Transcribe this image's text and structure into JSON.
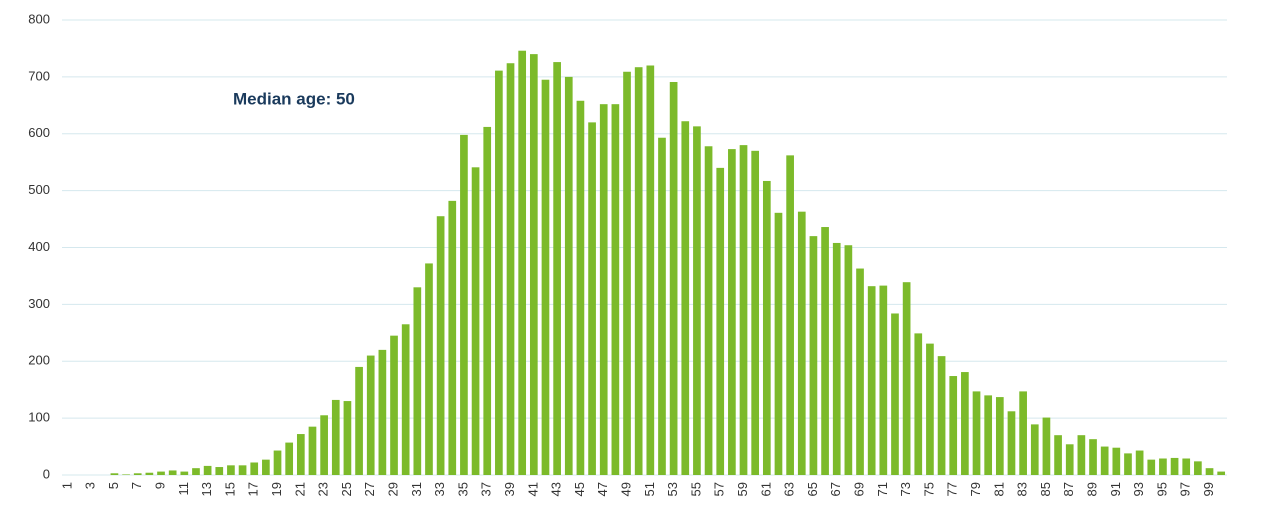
{
  "chart_data": {
    "type": "bar",
    "annotation": "Median age: 50",
    "categories": [
      1,
      null,
      3,
      null,
      5,
      null,
      7,
      null,
      9,
      null,
      11,
      null,
      13,
      null,
      15,
      null,
      17,
      null,
      19,
      null,
      21,
      null,
      23,
      null,
      25,
      null,
      27,
      null,
      29,
      null,
      31,
      null,
      33,
      null,
      35,
      null,
      37,
      null,
      39,
      null,
      41,
      null,
      43,
      null,
      45,
      null,
      47,
      null,
      49,
      null,
      51,
      null,
      53,
      null,
      55,
      null,
      57,
      null,
      59,
      null,
      61,
      null,
      63,
      null,
      65,
      null,
      67,
      null,
      69,
      null,
      71,
      null,
      73,
      null,
      75,
      null,
      77,
      null,
      79,
      null,
      81,
      null,
      83,
      null,
      85,
      null,
      87,
      null,
      89,
      null,
      91,
      null,
      93,
      null,
      95,
      null,
      97,
      null,
      99,
      null
    ],
    "values": [
      0,
      0,
      0,
      0,
      3,
      1,
      3,
      4,
      6,
      8,
      6,
      12,
      16,
      14,
      17,
      17,
      22,
      27,
      43,
      57,
      72,
      85,
      105,
      132,
      130,
      190,
      210,
      220,
      245,
      265,
      330,
      372,
      455,
      482,
      598,
      541,
      612,
      711,
      724,
      746,
      740,
      695,
      726,
      700,
      658,
      620,
      652,
      652,
      709,
      717,
      720,
      593,
      691,
      622,
      613,
      578,
      540,
      573,
      580,
      570,
      517,
      461,
      562,
      463,
      420,
      436,
      408,
      404,
      363,
      332,
      333,
      284,
      339,
      249,
      231,
      209,
      174,
      181,
      147,
      140,
      137,
      112,
      147,
      89,
      101,
      70,
      54,
      70,
      63,
      50,
      48,
      38,
      43,
      27,
      29,
      30,
      29,
      24,
      12,
      6
    ],
    "color": "#7cba2a",
    "ylim": [
      0,
      800
    ],
    "yticks": [
      0,
      100,
      200,
      300,
      400,
      500,
      600,
      700,
      800
    ],
    "grid": true
  }
}
